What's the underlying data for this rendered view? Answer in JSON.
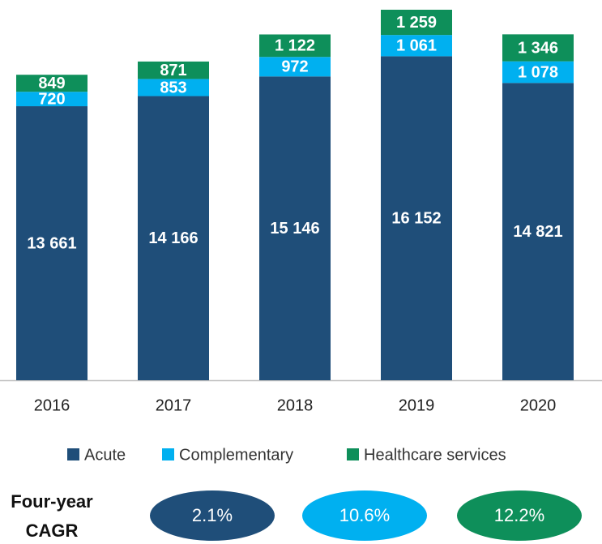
{
  "chart_data": {
    "type": "bar",
    "stacked": true,
    "categories": [
      "2016",
      "2017",
      "2018",
      "2019",
      "2020"
    ],
    "series": [
      {
        "name": "Acute",
        "color": "#1f4e79",
        "values": [
          13661,
          14166,
          15146,
          16152,
          14821
        ],
        "value_labels": [
          "13 661",
          "14 166",
          "15 146",
          "16 152",
          "14 821"
        ]
      },
      {
        "name": "Complementary",
        "color": "#00b0f0",
        "values": [
          720,
          853,
          972,
          1061,
          1078
        ],
        "value_labels": [
          "720",
          "853",
          "972",
          "1 061",
          "1 078"
        ]
      },
      {
        "name": "Healthcare services",
        "color": "#0e8f5a",
        "values": [
          849,
          871,
          1122,
          1259,
          1346
        ],
        "value_labels": [
          "849",
          "871",
          "1 122",
          "1 259",
          "1 346"
        ]
      }
    ],
    "cagr_title": [
      "Four-year",
      "CAGR"
    ],
    "cagr_labels": [
      "2.1%",
      "10.6%",
      "12.2%"
    ]
  }
}
